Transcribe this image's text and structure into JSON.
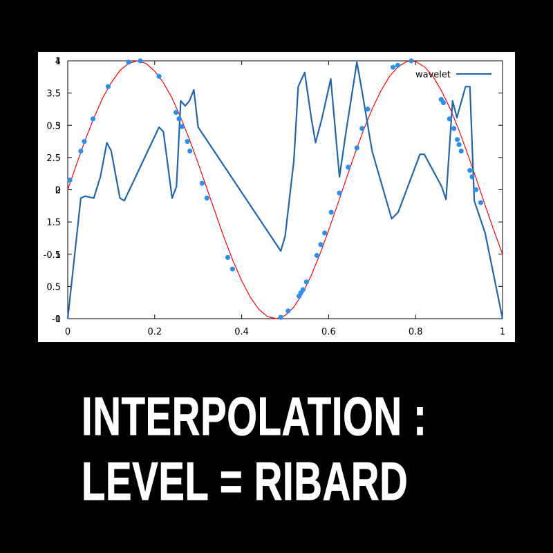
{
  "caption": {
    "line1": "INTERPOLATION :",
    "line2": "LEVEL = RIBARD"
  },
  "chart_data": {
    "type": "line",
    "title": "",
    "xlabel": "",
    "ylabel": "",
    "xlim": [
      0,
      1
    ],
    "ylim": [
      0,
      4
    ],
    "grid": false,
    "legend_position": "top-right",
    "x_ticks": [
      "0",
      "0.2",
      "0.4",
      "0.6",
      "0.8",
      "1"
    ],
    "x_tick_values": [
      0,
      0.2,
      0.4,
      0.6,
      0.8,
      1
    ],
    "y_ticks": [
      "0",
      "0.5",
      "1",
      "1.5",
      "2",
      "2.5",
      "3",
      "3.5",
      "4"
    ],
    "y_tick_values": [
      0,
      0.5,
      1,
      1.5,
      2,
      2.5,
      3,
      3.5,
      4
    ],
    "y_ticks_overlay": [
      "-1",
      "-0.5",
      "0",
      "0.5",
      "1"
    ],
    "y_tick_overlay_values": [
      0,
      1,
      2,
      3,
      4
    ],
    "series": [
      {
        "name": "wavelet",
        "color": "#1f66b0",
        "x": [
          0,
          0.03,
          0.04,
          0.06,
          0.075,
          0.09,
          0.1,
          0.12,
          0.13,
          0.21,
          0.22,
          0.24,
          0.25,
          0.26,
          0.27,
          0.28,
          0.29,
          0.3,
          0.49,
          0.5,
          0.52,
          0.53,
          0.545,
          0.56,
          0.57,
          0.585,
          0.605,
          0.625,
          0.64,
          0.665,
          0.675,
          0.7,
          0.745,
          0.76,
          0.81,
          0.82,
          0.86,
          0.87,
          0.885,
          0.895,
          0.915,
          0.925,
          0.935,
          0.96,
          1
        ],
        "y": [
          0,
          1.87,
          1.9,
          1.87,
          2.2,
          2.73,
          2.6,
          1.87,
          1.83,
          2.97,
          2.9,
          1.87,
          2.05,
          3.38,
          3.3,
          3.38,
          3.55,
          2.97,
          1.05,
          1.28,
          2.45,
          3.6,
          3.82,
          3.12,
          2.73,
          3.12,
          3.72,
          2.2,
          2.9,
          3.98,
          3.6,
          2.6,
          1.55,
          1.65,
          2.55,
          2.55,
          2.05,
          1.85,
          3.38,
          3.12,
          3.6,
          3.6,
          1.83,
          1.33,
          0
        ]
      },
      {
        "name": "",
        "color": "#ff0000",
        "x": [
          0,
          0.02,
          0.04,
          0.06,
          0.08,
          0.1,
          0.12,
          0.14,
          0.16,
          0.18,
          0.2,
          0.22,
          0.24,
          0.26,
          0.28,
          0.3,
          0.32,
          0.34,
          0.36,
          0.38,
          0.4,
          0.42,
          0.44,
          0.46,
          0.48,
          0.5,
          0.52,
          0.54,
          0.56,
          0.58,
          0.6,
          0.62,
          0.64,
          0.66,
          0.68,
          0.7,
          0.72,
          0.74,
          0.76,
          0.78,
          0.8,
          0.82,
          0.84,
          0.86,
          0.88,
          0.9,
          0.92,
          0.94,
          0.96,
          0.98,
          1
        ],
        "y": [
          2.0,
          2.39,
          2.77,
          3.11,
          3.42,
          3.66,
          3.85,
          3.96,
          4.0,
          3.96,
          3.84,
          3.66,
          3.42,
          3.12,
          2.78,
          2.41,
          2.02,
          1.63,
          1.25,
          0.9,
          0.59,
          0.33,
          0.14,
          0.03,
          0.0,
          0.05,
          0.18,
          0.39,
          0.67,
          1.0,
          1.37,
          1.76,
          2.16,
          2.55,
          2.92,
          3.25,
          3.53,
          3.76,
          3.91,
          3.99,
          3.99,
          3.91,
          3.76,
          3.53,
          3.25,
          2.92,
          2.55,
          2.16,
          1.76,
          1.37,
          1.0
        ]
      }
    ],
    "points": {
      "color": "#2b8ff0",
      "x": [
        0.005,
        0.03,
        0.038,
        0.058,
        0.093,
        0.14,
        0.167,
        0.21,
        0.249,
        0.256,
        0.263,
        0.275,
        0.281,
        0.309,
        0.32,
        0.368,
        0.379,
        0.49,
        0.507,
        0.532,
        0.536,
        0.541,
        0.549,
        0.573,
        0.582,
        0.591,
        0.606,
        0.625,
        0.645,
        0.665,
        0.677,
        0.69,
        0.748,
        0.759,
        0.79,
        0.859,
        0.864,
        0.878,
        0.888,
        0.896,
        0.9,
        0.905,
        0.925,
        0.93,
        0.939,
        0.95
      ],
      "y": [
        2.15,
        2.6,
        2.75,
        3.1,
        3.6,
        3.98,
        4.0,
        3.76,
        3.2,
        3.1,
        2.98,
        2.75,
        2.6,
        2.1,
        1.87,
        0.95,
        0.77,
        0.02,
        0.12,
        0.35,
        0.4,
        0.45,
        0.57,
        0.98,
        1.15,
        1.33,
        1.65,
        1.95,
        2.35,
        2.65,
        2.95,
        3.25,
        3.9,
        3.93,
        4.0,
        3.4,
        3.35,
        3.1,
        2.95,
        2.78,
        2.7,
        2.6,
        2.3,
        2.2,
        2.0,
        1.8
      ]
    }
  }
}
